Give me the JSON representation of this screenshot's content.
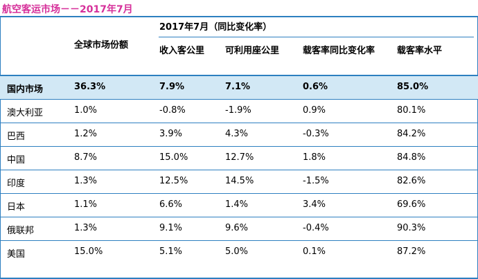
{
  "title": "航空客运市场－－2017年7月",
  "header": {
    "group": "2017年7月（同比变化率）",
    "global_share": "全球市场份额",
    "rpk": "收入客公里",
    "ask": "可利用座公里",
    "lf_change": "载客率同比变化率",
    "lf_level": "载客率水平"
  },
  "rows": [
    {
      "market": "国内市场",
      "share": "36.3%",
      "rpk": "7.9%",
      "ask": "7.1%",
      "lf_change": "0.6%",
      "lf_level": "85.0%"
    },
    {
      "market": "澳大利亚",
      "share": "1.0%",
      "rpk": "-0.8%",
      "ask": "-1.9%",
      "lf_change": "0.9%",
      "lf_level": "80.1%"
    },
    {
      "market": "巴西",
      "share": "1.2%",
      "rpk": "3.9%",
      "ask": "4.3%",
      "lf_change": "-0.3%",
      "lf_level": "84.2%"
    },
    {
      "market": "中国",
      "share": "8.7%",
      "rpk": "15.0%",
      "ask": "12.7%",
      "lf_change": "1.8%",
      "lf_level": "84.8%"
    },
    {
      "market": "印度",
      "share": "1.3%",
      "rpk": "12.5%",
      "ask": "14.5%",
      "lf_change": "-1.5%",
      "lf_level": "82.6%"
    },
    {
      "market": "日本",
      "share": "1.1%",
      "rpk": "6.6%",
      "ask": "1.4%",
      "lf_change": "3.4%",
      "lf_level": "69.6%"
    },
    {
      "market": "俄联邦",
      "share": "1.3%",
      "rpk": "9.1%",
      "ask": "9.6%",
      "lf_change": "-0.4%",
      "lf_level": "90.3%"
    },
    {
      "market": "美国",
      "share": "15.0%",
      "rpk": "5.1%",
      "ask": "5.0%",
      "lf_change": "0.1%",
      "lf_level": "87.2%"
    }
  ],
  "colors": {
    "title": "#d6309a",
    "rule": "#2d7fc0",
    "highlight_row": "#d2e8f5"
  }
}
